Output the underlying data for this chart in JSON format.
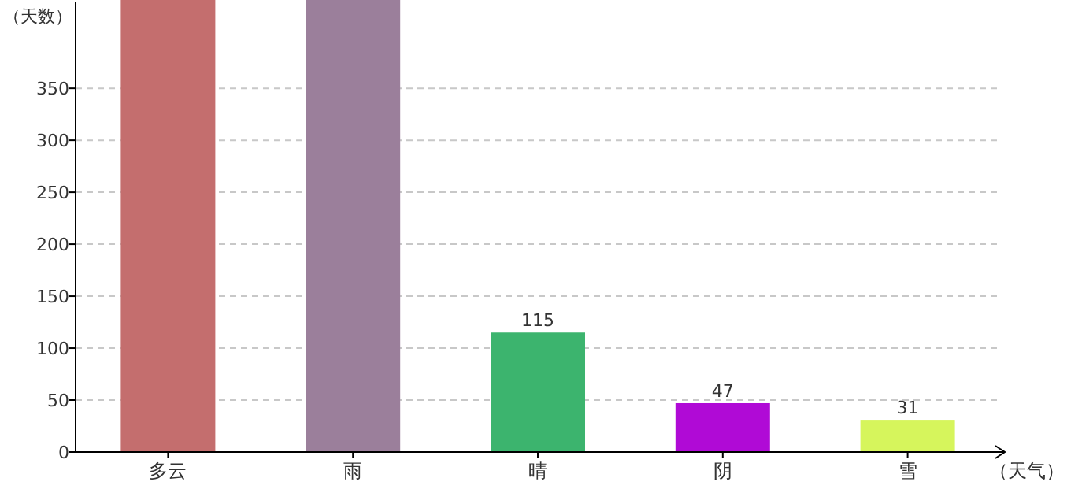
{
  "chart_data": {
    "type": "bar",
    "xlabel": "（天气）",
    "ylabel": "（天数）",
    "categories": [
      "多云",
      "雨",
      "晴",
      "阴",
      "雪"
    ],
    "values": [
      435,
      435,
      115,
      47,
      31
    ],
    "value_labels": [
      null,
      null,
      "115",
      "47",
      "31"
    ],
    "colors": [
      "#c46e6e",
      "#9b7f9b",
      "#3cb46e",
      "#b00ad6",
      "#d6f55c"
    ],
    "ylim": [
      0,
      435
    ],
    "yticks": [
      0,
      50,
      100,
      150,
      200,
      250,
      300,
      350
    ],
    "grid": "y"
  }
}
